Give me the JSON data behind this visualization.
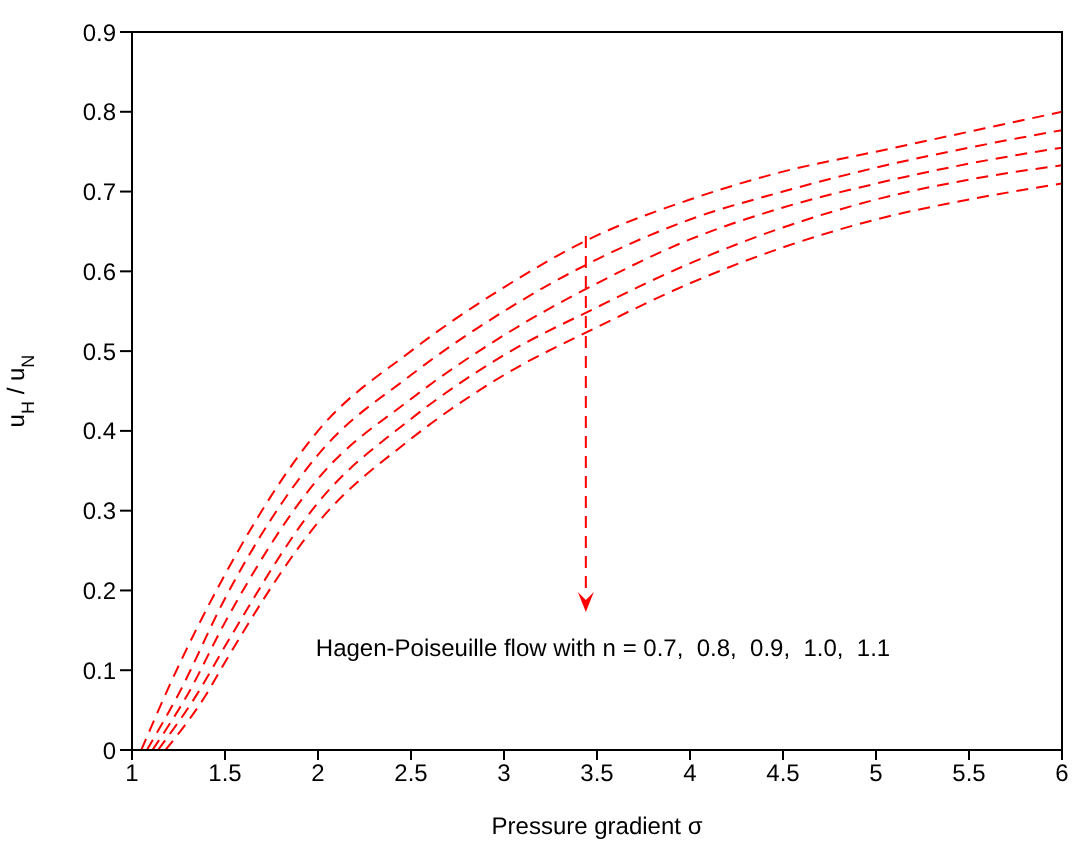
{
  "chart_data": {
    "type": "line",
    "xlabel": "Pressure  gradient  σ",
    "ylabel": "u$_{H}$ / u$_{N}$",
    "xlim": [
      1,
      6
    ],
    "ylim": [
      0,
      0.9
    ],
    "xticks": [
      1,
      1.5,
      2,
      2.5,
      3,
      3.5,
      4,
      4.5,
      5,
      5.5,
      6
    ],
    "yticks": [
      0,
      0.1,
      0.2,
      0.3,
      0.4,
      0.5,
      0.6,
      0.7,
      0.8,
      0.9
    ],
    "grid": false,
    "legend": false,
    "marker": "none",
    "line_style": "dashed",
    "annotations": [
      "Hagen-Poiseuille flow with n = 0.7,  0.8,  0.9,  1.0,  1.1"
    ],
    "series": [
      {
        "color": "#ff0000",
        "x": [
          1.05,
          1.2,
          1.5,
          2,
          2.5,
          3,
          3.5,
          4,
          4.5,
          5,
          5.5,
          6
        ],
        "values": [
          0,
          0.08,
          0.22,
          0.4,
          0.5,
          0.58,
          0.645,
          0.69,
          0.725,
          0.75,
          0.775,
          0.8
        ]
      },
      {
        "color": "#ff0000",
        "x": [
          1.08,
          1.25,
          1.5,
          2,
          2.5,
          3,
          3.5,
          4,
          4.5,
          5,
          5.5,
          6
        ],
        "values": [
          0,
          0.07,
          0.19,
          0.37,
          0.47,
          0.55,
          0.615,
          0.665,
          0.7,
          0.73,
          0.755,
          0.777
        ]
      },
      {
        "color": "#ff0000",
        "x": [
          1.11,
          1.3,
          1.5,
          2,
          2.5,
          3,
          3.5,
          4,
          4.5,
          5,
          5.5,
          6
        ],
        "values": [
          0,
          0.07,
          0.16,
          0.34,
          0.44,
          0.52,
          0.585,
          0.64,
          0.68,
          0.71,
          0.735,
          0.755
        ]
      },
      {
        "color": "#ff0000",
        "x": [
          1.14,
          1.35,
          1.5,
          2,
          2.5,
          3,
          3.5,
          4,
          4.5,
          5,
          5.5,
          6
        ],
        "values": [
          0,
          0.07,
          0.13,
          0.31,
          0.415,
          0.495,
          0.555,
          0.61,
          0.655,
          0.69,
          0.715,
          0.733
        ]
      },
      {
        "color": "#ff0000",
        "x": [
          1.18,
          1.4,
          1.5,
          2,
          2.5,
          3,
          3.5,
          4,
          4.5,
          5,
          5.5,
          6
        ],
        "values": [
          0,
          0.07,
          0.11,
          0.285,
          0.39,
          0.47,
          0.53,
          0.585,
          0.63,
          0.665,
          0.69,
          0.71
        ]
      }
    ]
  }
}
